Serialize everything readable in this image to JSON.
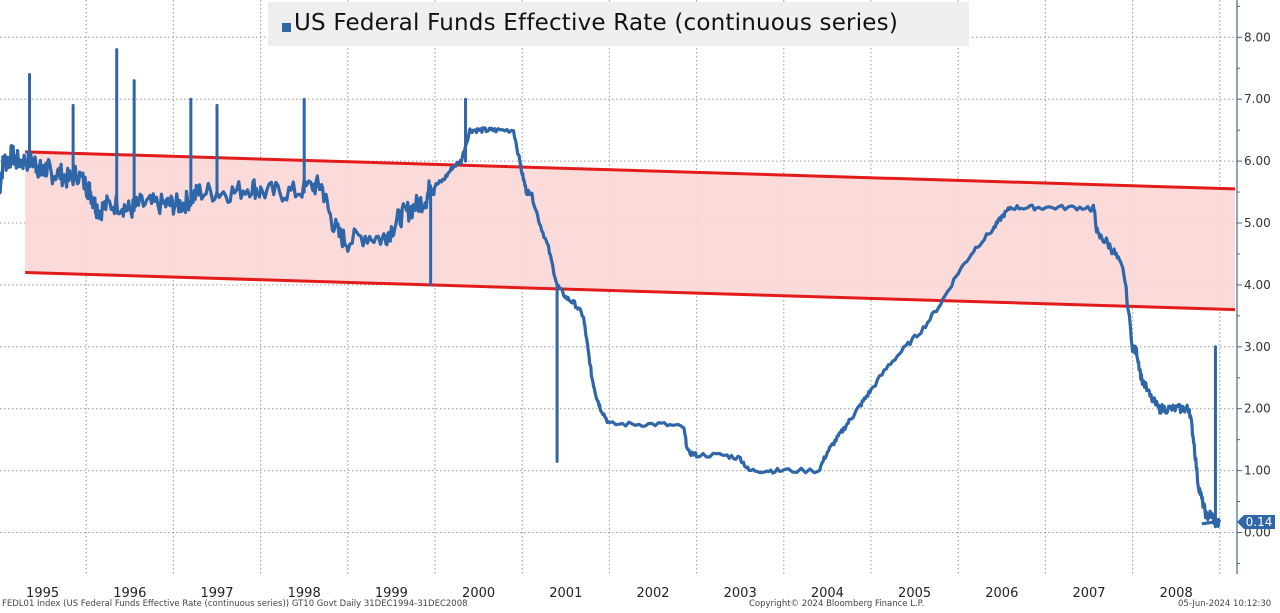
{
  "chart_data": {
    "type": "line",
    "title": "US Federal Funds Effective Rate (continuous series)",
    "xlabel": "",
    "ylabel": "",
    "xlim": [
      1995.0,
      2009.0
    ],
    "ylim": [
      -0.5,
      8.5
    ],
    "grid": true,
    "legend": "top-center",
    "x_tick_labels": [
      "1995",
      "1996",
      "1997",
      "1998",
      "1999",
      "2000",
      "2001",
      "2002",
      "2003",
      "2004",
      "2005",
      "2006",
      "2007",
      "2008"
    ],
    "y_ticks": [
      0,
      1,
      2,
      3,
      4,
      5,
      6,
      7,
      8
    ],
    "y_tick_labels": [
      "0.00",
      "1.00",
      "2.00",
      "3.00",
      "4.00",
      "5.00",
      "6.00",
      "7.00",
      "8.00"
    ],
    "last_value_label": "0.14",
    "colors": {
      "series": "#2f66a8",
      "band_line": "#e31b1b",
      "band_fill": "#fbd6d6",
      "last_value_bg": "#2f66a8"
    },
    "series": [
      {
        "name": "US Federal Funds Effective Rate (continuous series)",
        "x": [
          1995.0,
          1995.05,
          1995.1,
          1995.15,
          1995.2,
          1995.3,
          1995.4,
          1995.45,
          1995.5,
          1995.55,
          1995.6,
          1995.7,
          1995.8,
          1995.9,
          1996.0,
          1996.05,
          1996.1,
          1996.15,
          1996.25,
          1996.4,
          1996.5,
          1996.6,
          1996.75,
          1996.9,
          1997.0,
          1997.1,
          1997.2,
          1997.3,
          1997.5,
          1997.7,
          1997.9,
          1998.0,
          1998.2,
          1998.4,
          1998.6,
          1998.7,
          1998.8,
          1998.9,
          1999.0,
          1999.2,
          1999.4,
          1999.5,
          1999.6,
          1999.7,
          1999.8,
          1999.9,
          1999.95,
          2000.0,
          2000.1,
          2000.2,
          2000.3,
          2000.4,
          2000.5,
          2000.6,
          2000.7,
          2000.9,
          2001.0,
          2001.05,
          2001.1,
          2001.2,
          2001.3,
          2001.4,
          2001.5,
          2001.6,
          2001.7,
          2001.75,
          2001.8,
          2001.85,
          2001.9,
          2002.0,
          2002.3,
          2002.6,
          2002.85,
          2002.9,
          2003.0,
          2003.3,
          2003.5,
          2003.6,
          2003.8,
          2004.0,
          2004.4,
          2004.5,
          2004.6,
          2004.7,
          2004.8,
          2004.9,
          2005.0,
          2005.2,
          2005.4,
          2005.6,
          2005.8,
          2006.0,
          2006.2,
          2006.4,
          2006.5,
          2006.6,
          2006.8,
          2007.0,
          2007.3,
          2007.55,
          2007.6,
          2007.7,
          2007.8,
          2007.9,
          2008.0,
          2008.05,
          2008.1,
          2008.2,
          2008.3,
          2008.4,
          2008.5,
          2008.6,
          2008.65,
          2008.7,
          2008.75,
          2008.8,
          2008.85,
          2008.9,
          2008.95,
          2009.0
        ],
        "y": [
          5.5,
          6.0,
          6.0,
          6.1,
          6.0,
          6.0,
          6.0,
          5.9,
          5.8,
          5.9,
          5.8,
          5.8,
          5.7,
          5.8,
          5.6,
          5.5,
          5.3,
          5.2,
          5.3,
          5.3,
          5.2,
          5.3,
          5.3,
          5.3,
          5.3,
          5.3,
          5.4,
          5.5,
          5.5,
          5.5,
          5.6,
          5.5,
          5.5,
          5.5,
          5.6,
          5.6,
          5.1,
          4.8,
          4.7,
          4.8,
          4.75,
          4.9,
          5.1,
          5.2,
          5.3,
          5.4,
          5.6,
          5.6,
          5.7,
          5.9,
          6.0,
          6.5,
          6.5,
          6.5,
          6.5,
          6.5,
          5.8,
          5.5,
          5.5,
          5.0,
          4.6,
          4.0,
          3.8,
          3.7,
          3.5,
          3.0,
          2.5,
          2.2,
          2.0,
          1.75,
          1.75,
          1.75,
          1.7,
          1.3,
          1.25,
          1.25,
          1.2,
          1.0,
          1.0,
          1.0,
          1.0,
          1.3,
          1.5,
          1.7,
          1.9,
          2.1,
          2.3,
          2.7,
          3.0,
          3.3,
          3.7,
          4.2,
          4.6,
          4.9,
          5.1,
          5.25,
          5.25,
          5.25,
          5.25,
          5.25,
          4.8,
          4.7,
          4.5,
          4.2,
          3.0,
          2.9,
          2.5,
          2.2,
          2.0,
          2.0,
          2.0,
          2.0,
          2.0,
          1.5,
          0.8,
          0.5,
          0.25,
          0.3,
          0.15,
          0.14
        ]
      }
    ],
    "spikes": [
      {
        "x": 1995.35,
        "y": 7.4
      },
      {
        "x": 1995.85,
        "y": 6.9
      },
      {
        "x": 1996.35,
        "y": 7.8
      },
      {
        "x": 1996.55,
        "y": 7.3
      },
      {
        "x": 1997.2,
        "y": 7.0
      },
      {
        "x": 1997.5,
        "y": 6.9
      },
      {
        "x": 1998.5,
        "y": 7.0
      },
      {
        "x": 1999.95,
        "y": 4.0
      },
      {
        "x": 2000.35,
        "y": 7.0
      },
      {
        "x": 2001.4,
        "y": 1.15
      },
      {
        "x": 2008.95,
        "y": 3.0
      }
    ],
    "band": {
      "upper": {
        "x": [
          1995.3,
          2009.2
        ],
        "y": [
          6.15,
          5.55
        ]
      },
      "lower": {
        "x": [
          1995.3,
          2009.2
        ],
        "y": [
          4.2,
          3.6
        ]
      }
    }
  },
  "legend": {
    "label": "US Federal Funds Effective Rate (continuous series)"
  },
  "footer": {
    "source": "FEDL01 Index (US Federal Funds Effective Rate (continuous series)) GT10  Govt  Daily 31DEC1994-31DEC2008",
    "copyright": "Copyright© 2024 Bloomberg Finance L.P.",
    "timestamp": "05-Jun-2024 10:12:30"
  }
}
